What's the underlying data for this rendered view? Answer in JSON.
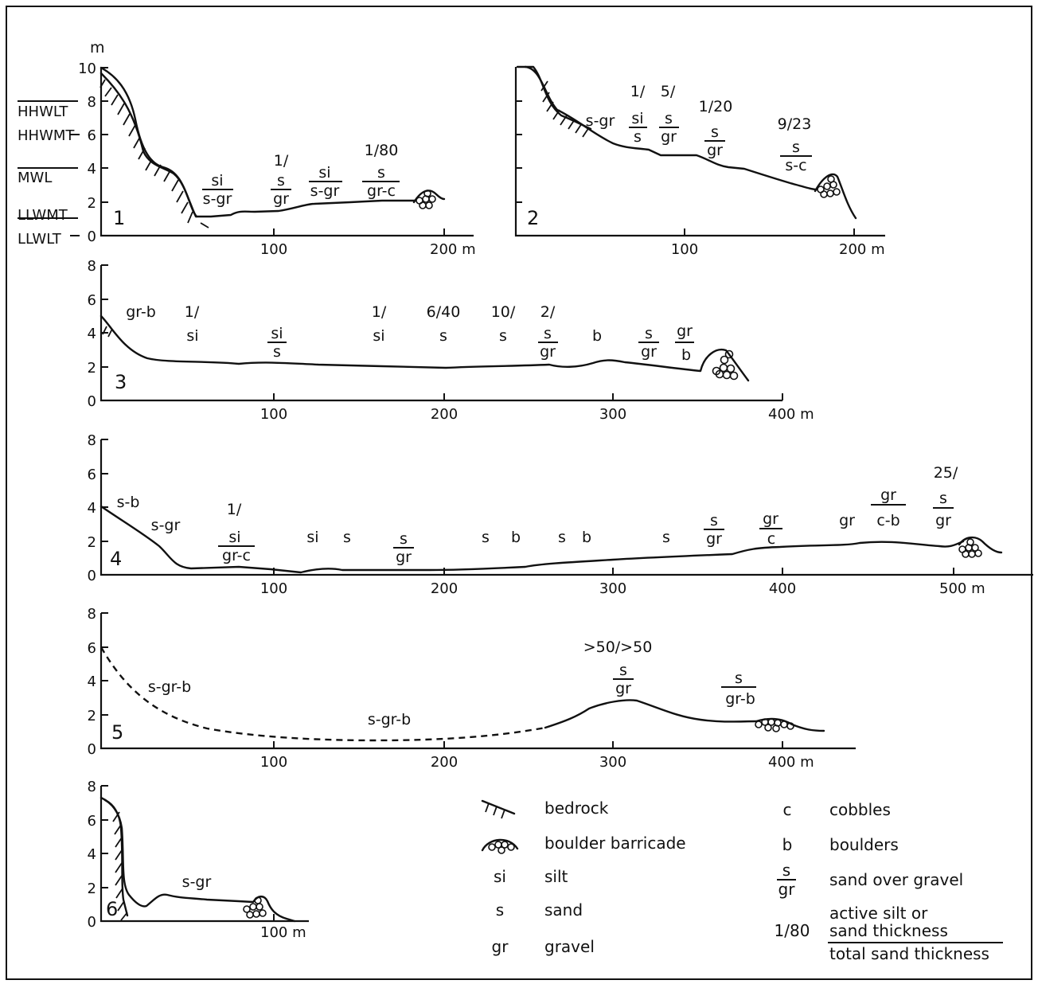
{
  "profiles": [
    {
      "id": 1,
      "number": "1",
      "y_unit": "m",
      "y_ticks": [
        "0",
        "2",
        "4",
        "6",
        "8",
        "10"
      ],
      "x_ticks": [
        "100",
        "200 m"
      ],
      "tide_levels": [
        {
          "name": "HHWLT",
          "value": 8
        },
        {
          "name": "HHWMT",
          "value": 6
        },
        {
          "name": "MWL",
          "value": 4
        },
        {
          "name": "LLWMT",
          "value": 1.3
        },
        {
          "name": "LLWLT",
          "value": 0
        }
      ],
      "annotations": [
        {
          "x": 68,
          "top": "si",
          "bottom": "s-gr"
        },
        {
          "x": 104,
          "pre": "1/",
          "top": "s",
          "bottom": "gr"
        },
        {
          "x": 128,
          "top": "si",
          "bottom": "s-gr"
        },
        {
          "x": 160,
          "pre": "1/80",
          "top": "s",
          "bottom": "gr-c"
        }
      ]
    },
    {
      "id": 2,
      "number": "2",
      "x_ticks": [
        "100",
        "200 m"
      ],
      "annotations": [
        {
          "x": 50,
          "single": "s-gr"
        },
        {
          "x": 72,
          "pre": "1/",
          "top": "si",
          "bottom": "s"
        },
        {
          "x": 84,
          "pre": "5/",
          "top": "s",
          "bottom": "gr"
        },
        {
          "x": 112,
          "pre": "1/20",
          "top": "s",
          "bottom": "gr"
        },
        {
          "x": 163,
          "pre": "9/23",
          "top": "s",
          "bottom": "s-c"
        }
      ]
    },
    {
      "id": 3,
      "number": "3",
      "y_ticks": [
        "0",
        "2",
        "4",
        "6",
        "8"
      ],
      "x_ticks": [
        "100",
        "200",
        "300",
        "400 m"
      ],
      "annotations": [
        {
          "x": 22,
          "single": "gr-b"
        },
        {
          "x": 53,
          "pre": "1/",
          "single": "si"
        },
        {
          "x": 98,
          "top": "si",
          "bottom": "s"
        },
        {
          "x": 163,
          "pre": "1/",
          "single": "si"
        },
        {
          "x": 200,
          "pre": "6/40",
          "single": "s"
        },
        {
          "x": 237,
          "pre": "10/",
          "single": "s"
        },
        {
          "x": 262,
          "pre": "2/",
          "top": "s",
          "bottom": "gr"
        },
        {
          "x": 289,
          "single": "b"
        },
        {
          "x": 322,
          "top": "s",
          "bottom": "gr"
        },
        {
          "x": 344,
          "top": "gr",
          "bottom": "b"
        }
      ]
    },
    {
      "id": 4,
      "number": "4",
      "y_ticks": [
        "0",
        "2",
        "4",
        "6",
        "8"
      ],
      "x_ticks": [
        "100",
        "200",
        "300",
        "400",
        "500 m"
      ],
      "annotations": [
        {
          "x": 15,
          "single": "s-b"
        },
        {
          "x": 37,
          "single": "s-gr"
        },
        {
          "x": 78,
          "pre": "1/",
          "top": "si",
          "bottom": "gr-c"
        },
        {
          "x": 124,
          "single": "si"
        },
        {
          "x": 144,
          "single": "s"
        },
        {
          "x": 177,
          "top": "s",
          "bottom": "gr"
        },
        {
          "x": 225,
          "single": "s"
        },
        {
          "x": 243,
          "single": "b"
        },
        {
          "x": 270,
          "single": "s"
        },
        {
          "x": 285,
          "single": "b"
        },
        {
          "x": 330,
          "single": "s"
        },
        {
          "x": 360,
          "top": "s",
          "bottom": "gr"
        },
        {
          "x": 392,
          "top": "gr",
          "bottom": "c"
        },
        {
          "x": 432,
          "single": "gr"
        },
        {
          "x": 457,
          "top": "gr",
          "bottom": "c-b"
        },
        {
          "x": 496,
          "pre": "25/",
          "top": "s",
          "bottom": "gr"
        }
      ]
    },
    {
      "id": 5,
      "number": "5",
      "y_ticks": [
        "0",
        "2",
        "4",
        "6",
        "8"
      ],
      "x_ticks": [
        "100",
        "200",
        "300",
        "400 m"
      ],
      "annotations": [
        {
          "x": 40,
          "single": "s-gr-b"
        },
        {
          "x": 168,
          "single": "s-gr-b"
        },
        {
          "x": 306,
          "pre": ">50/>50",
          "top": "s",
          "bottom": "gr"
        },
        {
          "x": 374,
          "top": "s",
          "bottom": "gr-b"
        }
      ]
    },
    {
      "id": 6,
      "number": "6",
      "y_ticks": [
        "0",
        "2",
        "4",
        "6",
        "8"
      ],
      "x_ticks": [
        "100 m"
      ],
      "annotations": [
        {
          "x": 56,
          "single": "s-gr"
        }
      ]
    }
  ],
  "legend": {
    "bedrock": "bedrock",
    "boulder_barricade": "boulder barricade",
    "si_code": "si",
    "si_label": "silt",
    "s_code": "s",
    "s_label": "sand",
    "gr_code": "gr",
    "gr_label": "gravel",
    "c_code": "c",
    "c_label": "cobbles",
    "b_code": "b",
    "b_label": "boulders",
    "sgr_top": "s",
    "sgr_bottom": "gr",
    "sgr_label": "sand over gravel",
    "ratio_example": "1/80",
    "active_line1": "active silt or",
    "active_line2": "sand thickness",
    "active_line3": "total sand thickness"
  }
}
